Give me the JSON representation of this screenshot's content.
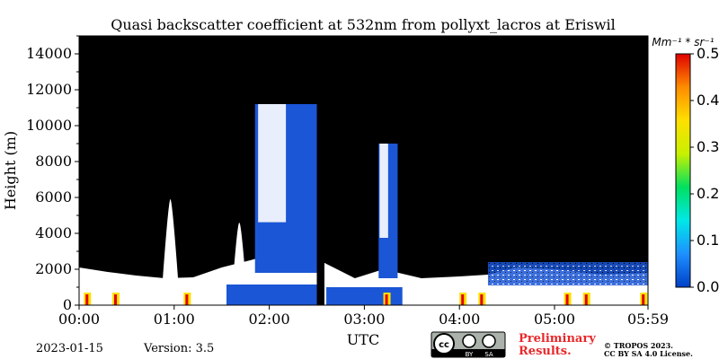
{
  "chart_data": {
    "type": "heatmap",
    "title": "Quasi backscatter coefficient at 532nm from pollyxt_lacros at Eriswil",
    "xlabel": "UTC",
    "ylabel": "Height (m)",
    "x_ticks": [
      "00:00",
      "01:00",
      "02:00",
      "03:00",
      "04:00",
      "05:00",
      "05:59"
    ],
    "x_tick_hours": [
      0,
      1,
      2,
      3,
      4,
      5,
      5.983
    ],
    "xlim_hours": [
      0,
      5.983
    ],
    "y_ticks": [
      0,
      2000,
      4000,
      6000,
      8000,
      10000,
      12000,
      14000
    ],
    "ylim": [
      0,
      15000
    ],
    "colorbar": {
      "label": "Mm⁻¹ * sr⁻¹",
      "ticks": [
        0.0,
        0.1,
        0.2,
        0.3,
        0.4,
        0.5
      ],
      "tick_labels": [
        "0.0",
        "0.1",
        "0.2",
        "0.3",
        "0.4",
        "0.5"
      ],
      "range": [
        0,
        0.5
      ],
      "colormap": [
        "#0040c8",
        "#1e90ff",
        "#00e8e8",
        "#00e060",
        "#c8f000",
        "#ffe000",
        "#ff8c00",
        "#e00000"
      ]
    },
    "background_color": "#000000",
    "no_signal_color": "#ffffff",
    "cloud_color": "#ffffff",
    "aerosol_color": "#1a56d6",
    "data_gaps_hours": [
      [
        2.5,
        2.58
      ]
    ],
    "overlap_zone_m": [
      0,
      700
    ],
    "boundary_layer_top_m": [
      {
        "h": 0.0,
        "v": 2100
      },
      {
        "h": 0.3,
        "v": 1850
      },
      {
        "h": 0.6,
        "v": 1650
      },
      {
        "h": 0.9,
        "v": 1500
      },
      {
        "h": 1.2,
        "v": 1550
      },
      {
        "h": 1.5,
        "v": 2100
      },
      {
        "h": 1.8,
        "v": 2500
      },
      {
        "h": 2.2,
        "v": 3100
      },
      {
        "h": 2.5,
        "v": 2600
      },
      {
        "h": 2.6,
        "v": 2300
      },
      {
        "h": 2.9,
        "v": 1500
      },
      {
        "h": 3.2,
        "v": 2000
      },
      {
        "h": 3.6,
        "v": 1500
      },
      {
        "h": 4.0,
        "v": 1600
      },
      {
        "h": 4.3,
        "v": 1700
      },
      {
        "h": 4.6,
        "v": 2100
      },
      {
        "h": 5.0,
        "v": 2000
      },
      {
        "h": 5.5,
        "v": 1700
      },
      {
        "h": 5.983,
        "v": 1800
      }
    ],
    "plumes_m": [
      {
        "h_start": 0.88,
        "h_end": 1.04,
        "top": 5900
      },
      {
        "h_start": 1.62,
        "h_end": 1.75,
        "top": 4600
      }
    ],
    "cirrus_m": [
      {
        "h_start": 1.85,
        "h_end": 2.5,
        "bottom": 1800,
        "top": 11200
      },
      {
        "h_start": 3.15,
        "h_end": 3.35,
        "bottom": 1500,
        "top": 9000
      }
    ],
    "aerosol_layers_m": [
      {
        "h_start": 1.55,
        "h_end": 2.5,
        "bottom": 0,
        "top": 1150
      },
      {
        "h_start": 2.6,
        "h_end": 3.4,
        "bottom": 0,
        "top": 1000
      },
      {
        "h_start": 4.3,
        "h_end": 5.983,
        "bottom": 1100,
        "top": 2400
      }
    ]
  },
  "footer": {
    "date": "2023-01-15",
    "version": "Version: 3.5",
    "preliminary_line1": "Preliminary",
    "preliminary_line2": "Results.",
    "credit_line1": "© TROPOS 2023.",
    "credit_line2": "CC BY SA 4.0 License.",
    "license_badge_left": "cc",
    "license_badge_by": "BY",
    "license_badge_sa": "SA"
  }
}
